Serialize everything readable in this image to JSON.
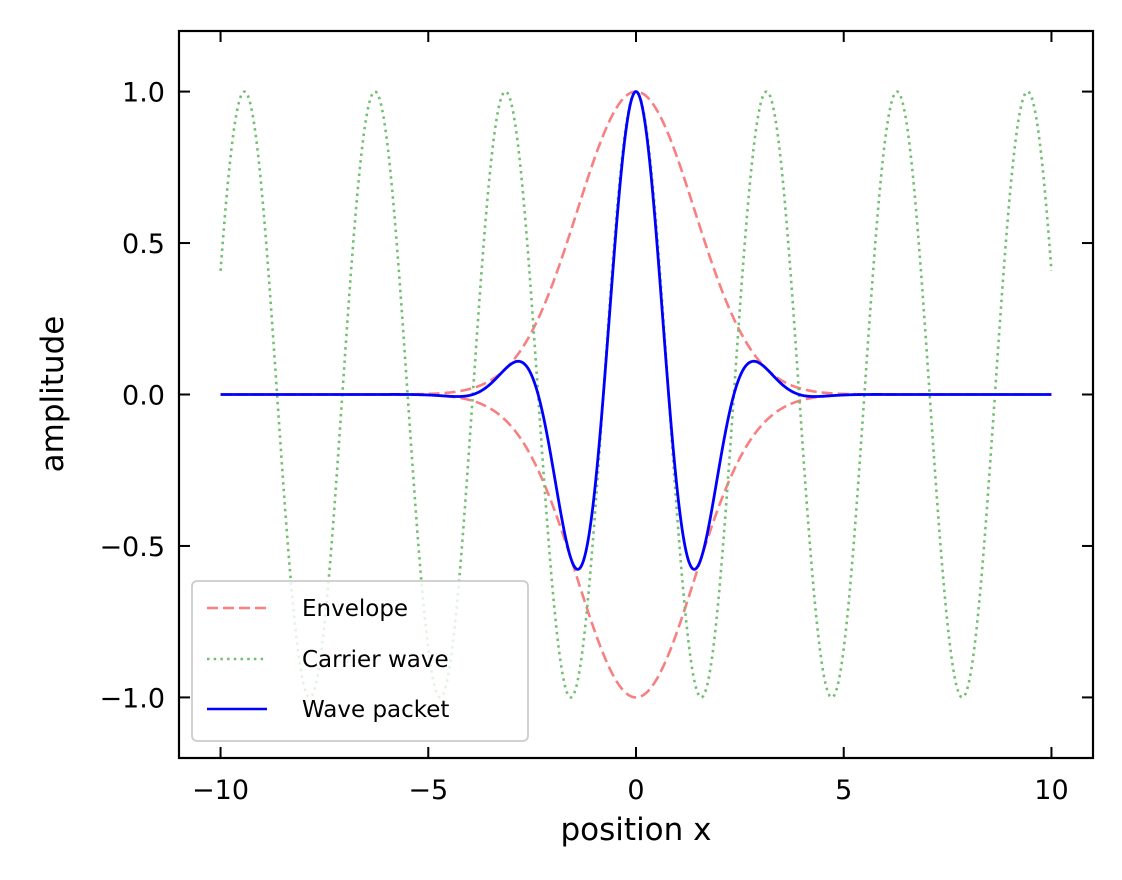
{
  "chart_data": {
    "type": "line",
    "title": "",
    "xlabel": "position x",
    "ylabel": "amplitude",
    "xlim": [
      -11,
      11
    ],
    "ylim": [
      -1.2,
      1.2
    ],
    "x_range": [
      -10,
      10
    ],
    "x_ticks": [
      -10,
      -5,
      0,
      5,
      10
    ],
    "x_tick_labels": [
      "−10",
      "−5",
      "0",
      "5",
      "10"
    ],
    "y_ticks": [
      -1.0,
      -0.5,
      0.0,
      0.5,
      1.0
    ],
    "y_tick_labels": [
      "−1.0",
      "−0.5",
      "0.0",
      "0.5",
      "1.0"
    ],
    "grid": false,
    "tick_direction": "in",
    "legend": {
      "placement": "lower-left"
    },
    "series": [
      {
        "name": "Envelope",
        "style": "dashed",
        "color": "#f88080",
        "formula": "y = ±exp(-x^2/4)",
        "peak": 1.0,
        "trough": -1.0
      },
      {
        "name": "Carrier wave",
        "style": "dotted",
        "color": "#72bf72",
        "formula": "y = cos(2x)",
        "peak": 1.0,
        "trough": -1.0
      },
      {
        "name": "Wave packet",
        "style": "solid",
        "color": "#0000ff",
        "formula": "y = exp(-x^2/4) * cos(2x)",
        "peak": 1.0,
        "trough": -0.58
      }
    ]
  }
}
